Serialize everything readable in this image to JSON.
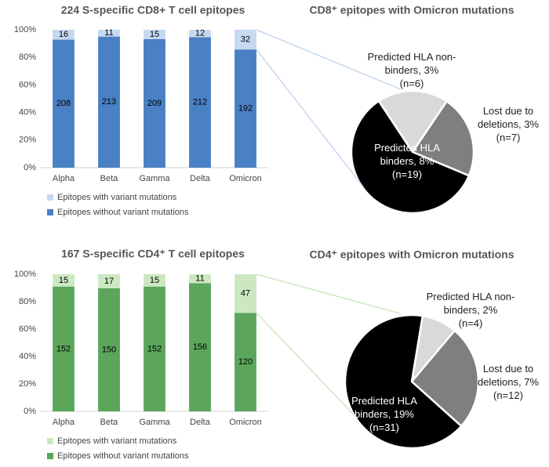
{
  "chart_data": [
    {
      "type": "stacked_percent_bar",
      "title": "224 S-specific CD8+ T cell epitopes",
      "categories": [
        "Alpha",
        "Beta",
        "Gamma",
        "Delta",
        "Omicron"
      ],
      "series": [
        {
          "name": "Epitopes with variant mutations",
          "color": "#c5d9f0",
          "values": [
            16,
            11,
            15,
            12,
            32
          ]
        },
        {
          "name": "Epitopes without variant mutations",
          "color": "#4a80c4",
          "values": [
            208,
            213,
            209,
            212,
            192
          ]
        }
      ],
      "ylim": [
        0,
        100
      ],
      "yticks": [
        {
          "value": 0,
          "label": "0%"
        },
        {
          "value": 20,
          "label": "20%"
        },
        {
          "value": 40,
          "label": "40%"
        },
        {
          "value": 60,
          "label": "60%"
        },
        {
          "value": 80,
          "label": "80%"
        },
        {
          "value": 100,
          "label": "100%"
        }
      ],
      "grid": false
    },
    {
      "type": "pie",
      "title": "CD8⁺ epitopes with Omicron mutations",
      "labels": [
        "Predicted HLA non-binders, 3%",
        "Lost due to deletions, 3%",
        "Predicted HLA binders, 8%"
      ],
      "values": [
        6,
        7,
        19
      ],
      "value_labels": [
        "(n=6)",
        "(n=7)",
        "(n=19)"
      ],
      "colors": [
        "#d9d9d9",
        "#7f7f7f",
        "#000000"
      ]
    },
    {
      "type": "stacked_percent_bar",
      "title": "167 S-specific CD4⁺ T cell epitopes",
      "categories": [
        "Alpha",
        "Beta",
        "Gamma",
        "Delta",
        "Omicron"
      ],
      "series": [
        {
          "name": "Epitopes with variant mutations",
          "color": "#cce8c2",
          "values": [
            15,
            17,
            15,
            11,
            47
          ]
        },
        {
          "name": "Epitopes without variant mutations",
          "color": "#5ba65b",
          "values": [
            152,
            150,
            152,
            156,
            120
          ]
        }
      ],
      "ylim": [
        0,
        100
      ],
      "yticks": [
        {
          "value": 0,
          "label": "0%"
        },
        {
          "value": 20,
          "label": "20%"
        },
        {
          "value": 40,
          "label": "40%"
        },
        {
          "value": 60,
          "label": "60%"
        },
        {
          "value": 80,
          "label": "80%"
        },
        {
          "value": 100,
          "label": "100%"
        }
      ],
      "grid": false
    },
    {
      "type": "pie",
      "title": "CD4⁺ epitopes with Omicron mutations",
      "labels": [
        "Predicted HLA non-binders, 2%",
        "Lost due to deletions, 7%",
        "Predicted HLA binders, 19%"
      ],
      "values": [
        4,
        12,
        31
      ],
      "value_labels": [
        "(n=4)",
        "(n=12)",
        "(n=31)"
      ],
      "colors": [
        "#d9d9d9",
        "#7f7f7f",
        "#000000"
      ]
    }
  ]
}
